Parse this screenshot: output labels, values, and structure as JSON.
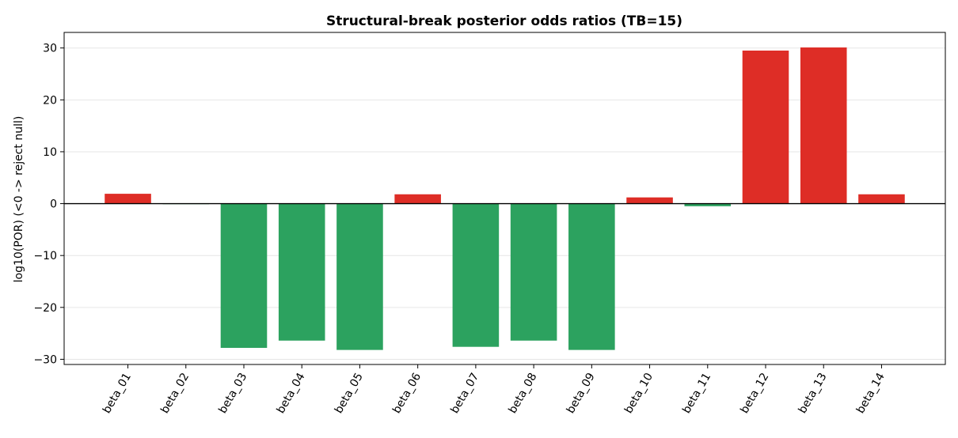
{
  "chart_data": {
    "type": "bar",
    "title": "Structural-break posterior odds ratios (TB=15)",
    "xlabel": "",
    "ylabel": "log10(POR)   (<0 -> reject null)",
    "categories": [
      "beta_01",
      "beta_02",
      "beta_03",
      "beta_04",
      "beta_05",
      "beta_06",
      "beta_07",
      "beta_08",
      "beta_09",
      "beta_10",
      "beta_11",
      "beta_12",
      "beta_13",
      "beta_14"
    ],
    "values": [
      1.9,
      -0.1,
      -27.8,
      -26.4,
      -28.2,
      1.8,
      -27.6,
      -26.4,
      -28.2,
      1.2,
      -0.5,
      29.5,
      30.1,
      1.8
    ],
    "ylim": [
      -31,
      33
    ],
    "yticks": [
      -30,
      -20,
      -10,
      0,
      10,
      20,
      30
    ],
    "ytick_labels": [
      "−30",
      "−20",
      "−10",
      "0",
      "10",
      "20",
      "30"
    ],
    "grid": "y",
    "reference_line": 0,
    "colors": {
      "positive": "#de2d26",
      "negative": "#2ca25f"
    }
  }
}
